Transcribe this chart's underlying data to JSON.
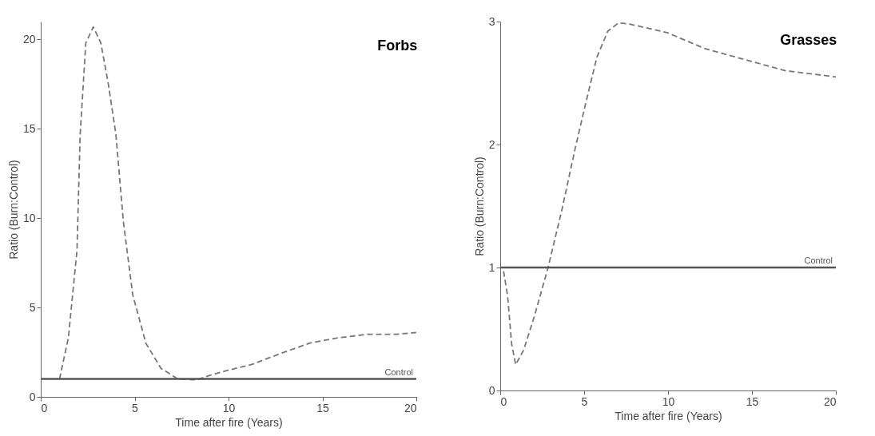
{
  "chart_data": [
    {
      "type": "line",
      "title": "Forbs",
      "xlabel": "Time after fire (Years)",
      "ylabel": "Ratio (Burn:Control)",
      "line_style": "dashed",
      "grid": false,
      "xlim": [
        0,
        20
      ],
      "ylim": [
        0,
        21
      ],
      "xticks": [
        0,
        5,
        10,
        15,
        20
      ],
      "yticks": [
        0,
        5,
        10,
        15,
        20
      ],
      "x": [
        1.0,
        1.47,
        1.93,
        2.1,
        2.4,
        2.8,
        3.2,
        3.6,
        4.0,
        4.4,
        4.9,
        5.6,
        6.4,
        7.3,
        8.3,
        9.0,
        10,
        11.2,
        12.7,
        14.3,
        15.8,
        17.4,
        18.9,
        20
      ],
      "series": [
        {
          "color": "#777777",
          "values": [
            1.0,
            3.3,
            8.2,
            14.7,
            19.8,
            20.7,
            19.8,
            17.5,
            14.7,
            9.8,
            5.7,
            3.0,
            1.6,
            1.0,
            0.95,
            1.2,
            1.5,
            1.8,
            2.4,
            3.0,
            3.3,
            3.5,
            3.5,
            3.6
          ]
        }
      ],
      "ref_lines": [
        {
          "axis": "y",
          "value": 1,
          "label": "Control",
          "color": "#555555"
        }
      ]
    },
    {
      "type": "line",
      "title": "Grasses",
      "xlabel": "Time after fire (Years)",
      "ylabel": "Ratio (Burn:Control)",
      "line_style": "dashed",
      "grid": false,
      "xlim": [
        0,
        20
      ],
      "ylim": [
        0,
        3
      ],
      "xticks": [
        0,
        5,
        10,
        15,
        20
      ],
      "yticks": [
        0,
        1,
        2,
        3
      ],
      "x": [
        0.2,
        0.44,
        0.68,
        0.92,
        1.4,
        2.05,
        2.85,
        3.66,
        4.47,
        5.1,
        5.76,
        6.4,
        7.05,
        7.7,
        9.95,
        12.2,
        14.6,
        17.0,
        20
      ],
      "series": [
        {
          "color": "#777777",
          "values": [
            0.97,
            0.77,
            0.38,
            0.21,
            0.33,
            0.61,
            1.0,
            1.46,
            1.97,
            2.34,
            2.71,
            2.92,
            2.99,
            2.98,
            2.91,
            2.78,
            2.69,
            2.6,
            2.55
          ]
        }
      ],
      "ref_lines": [
        {
          "axis": "y",
          "value": 1,
          "label": "Control",
          "color": "#555555"
        }
      ]
    }
  ]
}
